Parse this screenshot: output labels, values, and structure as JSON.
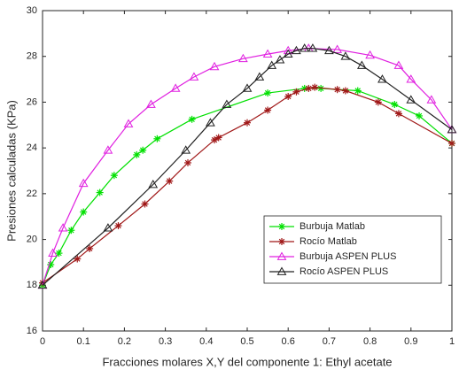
{
  "chart_data": {
    "type": "line",
    "xlabel": "Fracciones molares X,Y del componente 1: Ethyl acetate",
    "ylabel": "Presiones calculadas (KPa)",
    "xlim": [
      0,
      1
    ],
    "xticks": [
      0,
      0.1,
      0.2,
      0.3,
      0.4,
      0.5,
      0.6,
      0.7,
      0.8,
      0.9,
      1
    ],
    "ylim": [
      16,
      30
    ],
    "yticks": [
      16,
      18,
      20,
      22,
      24,
      26,
      28,
      30
    ],
    "grid": false,
    "legend": "lower right",
    "series": [
      {
        "name": "Burbuja Matlab",
        "color": "#00e000",
        "marker": "star",
        "x": [
          0,
          0.02,
          0.04,
          0.07,
          0.1,
          0.14,
          0.175,
          0.23,
          0.245,
          0.28,
          0.365,
          0.55,
          0.64,
          0.68,
          0.77,
          0.86,
          0.92,
          1
        ],
        "values": [
          18.0,
          18.9,
          19.4,
          20.4,
          21.2,
          22.05,
          22.8,
          23.7,
          23.9,
          24.4,
          25.25,
          26.4,
          26.6,
          26.6,
          26.5,
          25.9,
          25.4,
          24.2
        ]
      },
      {
        "name": "Rocío Matlab",
        "color": "#a01818",
        "marker": "star",
        "x": [
          0,
          0.085,
          0.115,
          0.185,
          0.25,
          0.31,
          0.355,
          0.42,
          0.43,
          0.5,
          0.55,
          0.6,
          0.62,
          0.65,
          0.665,
          0.72,
          0.74,
          0.82,
          0.87,
          1
        ],
        "values": [
          18.1,
          19.15,
          19.6,
          20.6,
          21.55,
          22.55,
          23.35,
          24.35,
          24.45,
          25.1,
          25.65,
          26.25,
          26.45,
          26.6,
          26.65,
          26.55,
          26.5,
          26.0,
          25.5,
          24.2
        ]
      },
      {
        "name": "Burbuja ASPEN PLUS",
        "color": "#e020e0",
        "marker": "triangle",
        "x": [
          0,
          0.025,
          0.05,
          0.1,
          0.16,
          0.21,
          0.265,
          0.325,
          0.37,
          0.42,
          0.49,
          0.55,
          0.6,
          0.65,
          0.72,
          0.8,
          0.87,
          0.9,
          0.95,
          1
        ],
        "values": [
          18.0,
          19.4,
          20.5,
          22.45,
          23.9,
          25.05,
          25.9,
          26.6,
          27.1,
          27.55,
          27.9,
          28.1,
          28.25,
          28.35,
          28.3,
          28.05,
          27.6,
          27.0,
          26.1,
          24.8
        ]
      },
      {
        "name": "Rocío ASPEN PLUS",
        "color": "#202020",
        "marker": "triangle",
        "x": [
          0,
          0.16,
          0.27,
          0.35,
          0.41,
          0.45,
          0.5,
          0.53,
          0.56,
          0.58,
          0.6,
          0.62,
          0.64,
          0.66,
          0.7,
          0.74,
          0.78,
          0.83,
          0.9,
          1
        ],
        "values": [
          18.0,
          20.5,
          22.4,
          23.9,
          25.1,
          25.9,
          26.6,
          27.1,
          27.6,
          27.85,
          28.1,
          28.25,
          28.35,
          28.35,
          28.25,
          28.0,
          27.6,
          27.0,
          26.1,
          24.8
        ]
      }
    ]
  }
}
